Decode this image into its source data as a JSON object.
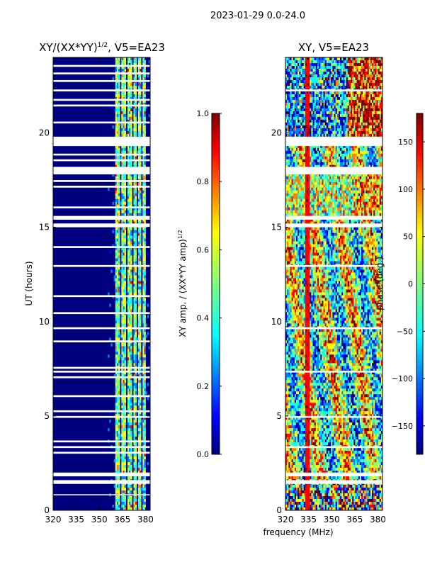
{
  "suptitle": "2023-01-29 0.0-24.0",
  "xlabel_shared": "frequency (MHz)",
  "colors": {
    "jet": [
      "#00007f",
      "#0000ff",
      "#007fff",
      "#00ffff",
      "#7fff7f",
      "#ffff00",
      "#ff7f00",
      "#ff0000",
      "#7f0000"
    ]
  },
  "chart_data": [
    {
      "type": "heatmap",
      "title_main": "XY/(XX*YY)",
      "title_exp": "1/2",
      "title_tail": ", V5=EA23",
      "ylabel": "UT (hours)",
      "xlim": [
        320,
        383
      ],
      "xticks": [
        320,
        335,
        350,
        365,
        380
      ],
      "ylim": [
        0,
        24
      ],
      "yticks": [
        0,
        5,
        10,
        15,
        20
      ],
      "colorbar": {
        "label_main": "XY amp. / (XX*YY amp)",
        "label_exp": "1/2",
        "range": [
          0.0,
          1.0
        ],
        "ticks": [
          "0.0",
          "0.2",
          "0.4",
          "0.6",
          "0.8",
          "1.0"
        ],
        "tick_values": [
          0.0,
          0.2,
          0.4,
          0.6,
          0.8,
          1.0
        ]
      },
      "bright_bands_mhz": [
        [
          360,
          363
        ],
        [
          364,
          367
        ],
        [
          368,
          371
        ],
        [
          372,
          374
        ],
        [
          375,
          377
        ],
        [
          378,
          380
        ]
      ],
      "gap_hours": [
        [
          0.8,
          0.85
        ],
        [
          1.4,
          1.6
        ],
        [
          1.8,
          2.0
        ],
        [
          3.0,
          3.1
        ],
        [
          3.3,
          3.4
        ],
        [
          3.6,
          3.7
        ],
        [
          4.9,
          5.0
        ],
        [
          5.2,
          5.3
        ],
        [
          6.0,
          6.1
        ],
        [
          7.0,
          7.1
        ],
        [
          7.3,
          7.4
        ],
        [
          7.5,
          7.6
        ],
        [
          8.9,
          9.0
        ],
        [
          9.6,
          9.7
        ],
        [
          10.4,
          10.5
        ],
        [
          11.3,
          11.4
        ],
        [
          12.9,
          13.0
        ],
        [
          13.9,
          14.0
        ],
        [
          15.0,
          15.2
        ],
        [
          15.4,
          15.6
        ],
        [
          16.0,
          16.1
        ],
        [
          17.1,
          17.2
        ],
        [
          17.4,
          17.5
        ],
        [
          17.8,
          18.2
        ],
        [
          18.5,
          18.6
        ],
        [
          18.8,
          18.9
        ],
        [
          19.3,
          19.8
        ],
        [
          20.5,
          20.6
        ],
        [
          21.4,
          21.5
        ],
        [
          21.7,
          21.8
        ],
        [
          22.2,
          22.3
        ],
        [
          22.7,
          22.8
        ],
        [
          23.1,
          23.2
        ],
        [
          23.5,
          23.6
        ]
      ]
    },
    {
      "type": "heatmap",
      "title": "XY, V5=EA23",
      "xlim": [
        320,
        383
      ],
      "xticks": [
        320,
        335,
        350,
        365,
        380
      ],
      "ylim": [
        0,
        24
      ],
      "yticks": [
        0,
        5,
        10,
        15,
        20
      ],
      "colorbar": {
        "label": "phase (deg.)",
        "range": [
          -180,
          180
        ],
        "ticks": [
          "−150",
          "−100",
          "−50",
          "0",
          "50",
          "100",
          "150"
        ],
        "tick_values": [
          -150,
          -100,
          -50,
          0,
          50,
          100,
          150
        ]
      },
      "gap_hours": [
        [
          1.4,
          1.6
        ],
        [
          1.8,
          2.0
        ],
        [
          3.3,
          3.4
        ],
        [
          4.9,
          5.0
        ],
        [
          7.3,
          7.4
        ],
        [
          9.6,
          9.7
        ],
        [
          12.9,
          13.0
        ],
        [
          15.0,
          15.2
        ],
        [
          15.4,
          15.6
        ],
        [
          17.8,
          18.2
        ],
        [
          19.3,
          19.8
        ],
        [
          22.2,
          22.3
        ]
      ]
    }
  ]
}
